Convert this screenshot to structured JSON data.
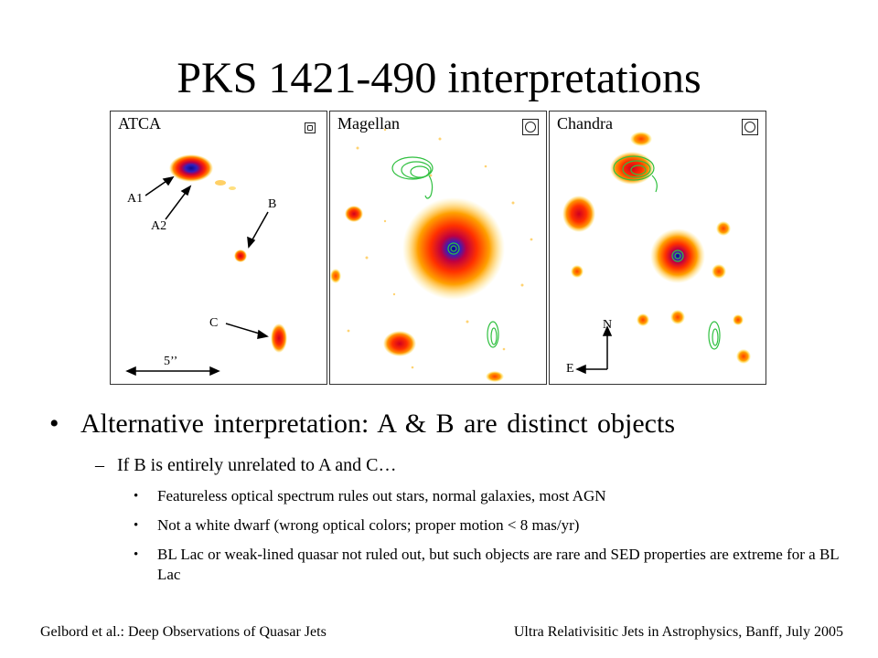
{
  "slide": {
    "title": "PKS 1421-490 interpretations"
  },
  "figure": {
    "panels": [
      {
        "label": "ATCA",
        "beam": "small-square-beam-icon"
      },
      {
        "label": "Magellan",
        "beam": "circle-beam-icon"
      },
      {
        "label": "Chandra",
        "beam": "circle-beam-icon"
      }
    ],
    "annotations": {
      "a1": "A1",
      "a2": "A2",
      "b": "B",
      "c": "C",
      "scale": "5’’",
      "north": "N",
      "east": "E"
    },
    "colors": {
      "core": "#1010a0",
      "hot": "#ff2000",
      "warm": "#ffb000",
      "contour": "#30c040"
    }
  },
  "bullets": {
    "level1": "Alternative interpretation: A & B are distinct objects",
    "level2": "If B is entirely unrelated to A and C…",
    "level3": [
      "Featureless optical spectrum rules out stars, normal galaxies, most AGN",
      "Not a white dwarf (wrong optical colors; proper motion < 8 mas/yr)",
      "BL Lac or weak-lined quasar not ruled out, but such objects are rare and SED properties are extreme for a BL Lac"
    ]
  },
  "footer": {
    "left": "Gelbord et al.: Deep Observations of Quasar Jets",
    "right": "Ultra Relativisitic Jets in Astrophysics, Banff, July 2005"
  }
}
